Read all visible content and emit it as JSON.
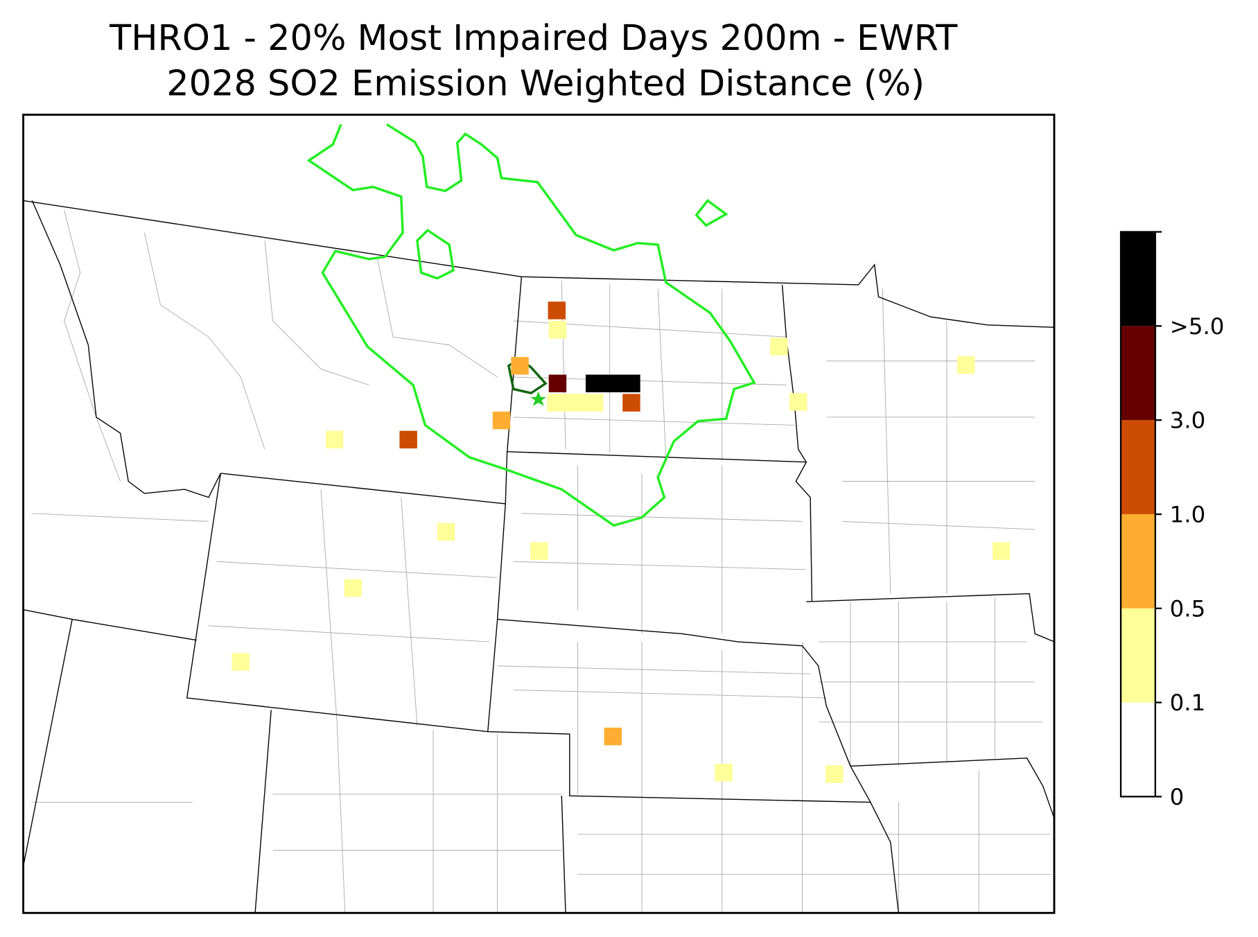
{
  "title_lines": [
    "THRO1 - 20% Most Impaired Days 200m - EWRT",
    "2028 SO2 Emission Weighted Distance (%)"
  ],
  "colorbar": {
    "ticks": [
      0,
      0.1,
      0.5,
      {
        "value": 1,
        "label": "1.0"
      },
      {
        "value": 3,
        "label": "3.0"
      },
      {
        "value": 5,
        "label": ">5.0"
      }
    ],
    "colors": [
      "#ffffff",
      "#ffff99",
      "#fdae32",
      "#cc4c02",
      "#660000",
      "#000000"
    ]
  }
}
